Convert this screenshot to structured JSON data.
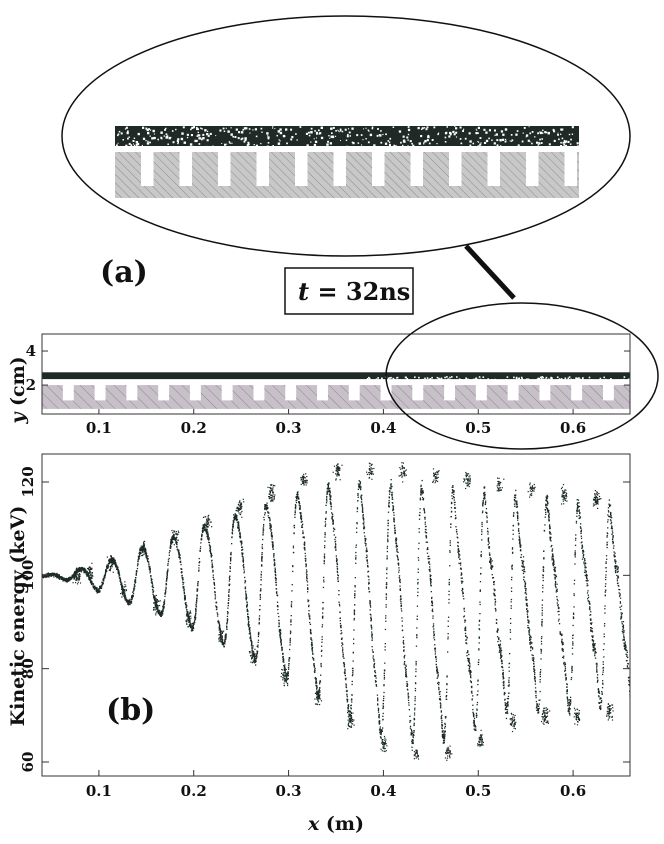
{
  "colors": {
    "beam": "#1f2a27",
    "structure": "#c8c8c8",
    "hatch": "#8a8a8a",
    "structure_main": "#c8c0c8",
    "points": "#1d2b28"
  },
  "top": {
    "label_a": "(a)",
    "time_var": "t",
    "time_eq": " = 32ns"
  },
  "chart_data": [
    {
      "type": "scatter",
      "panel": "(a)",
      "xlabel": "",
      "ylabel_var": "y",
      "ylabel_unit": " (cm)",
      "xlim": [
        0.04,
        0.66
      ],
      "ylim": [
        0.3,
        5.0
      ],
      "yticks": [
        2,
        4
      ],
      "xticks": [
        0.1,
        0.2,
        0.3,
        0.4,
        0.5,
        0.6
      ],
      "ytick_labels": [
        "2",
        "4"
      ],
      "xtick_labels": [
        "0.1",
        "0.2",
        "0.3",
        "0.4",
        "0.5",
        "0.6"
      ],
      "beam_y": [
        2.35,
        2.75
      ],
      "structure": {
        "top": 2.0,
        "base": 1.1,
        "bottom": 0.6,
        "period": 0.0335,
        "vane_width": 0.022
      }
    },
    {
      "type": "scatter",
      "panel": "(b)",
      "xlabel_var": "x",
      "xlabel_unit": " (m)",
      "ylabel": "Kinetic energy (keV)",
      "xlim": [
        0.04,
        0.66
      ],
      "ylim": [
        57,
        126
      ],
      "xticks": [
        0.1,
        0.2,
        0.3,
        0.4,
        0.5,
        0.6
      ],
      "xtick_labels": [
        "0.1",
        "0.2",
        "0.3",
        "0.4",
        "0.5",
        "0.6"
      ],
      "yticks": [
        60,
        80,
        100,
        120
      ],
      "ytick_labels": [
        "60",
        "80",
        "100",
        "120"
      ],
      "oscillation": {
        "start_x": 0.045,
        "period_start": 0.033,
        "period_end": 0.0335,
        "peaks": [
          {
            "x": 0.08,
            "max": 101.5,
            "min": 98.5
          },
          {
            "x": 0.116,
            "max": 104,
            "min": 95
          },
          {
            "x": 0.15,
            "max": 107,
            "min": 92
          },
          {
            "x": 0.184,
            "max": 110,
            "min": 89
          },
          {
            "x": 0.218,
            "max": 113,
            "min": 85
          },
          {
            "x": 0.252,
            "max": 116,
            "min": 81
          },
          {
            "x": 0.286,
            "max": 119,
            "min": 76
          },
          {
            "x": 0.32,
            "max": 122,
            "min": 72
          },
          {
            "x": 0.355,
            "max": 124,
            "min": 67
          },
          {
            "x": 0.39,
            "max": 124,
            "min": 62
          },
          {
            "x": 0.424,
            "max": 124,
            "min": 60
          },
          {
            "x": 0.458,
            "max": 123,
            "min": 60
          },
          {
            "x": 0.492,
            "max": 122,
            "min": 63
          },
          {
            "x": 0.526,
            "max": 121,
            "min": 67
          },
          {
            "x": 0.56,
            "max": 120,
            "min": 68
          },
          {
            "x": 0.594,
            "max": 119,
            "min": 68
          },
          {
            "x": 0.628,
            "max": 118,
            "min": 69
          }
        ]
      }
    }
  ]
}
